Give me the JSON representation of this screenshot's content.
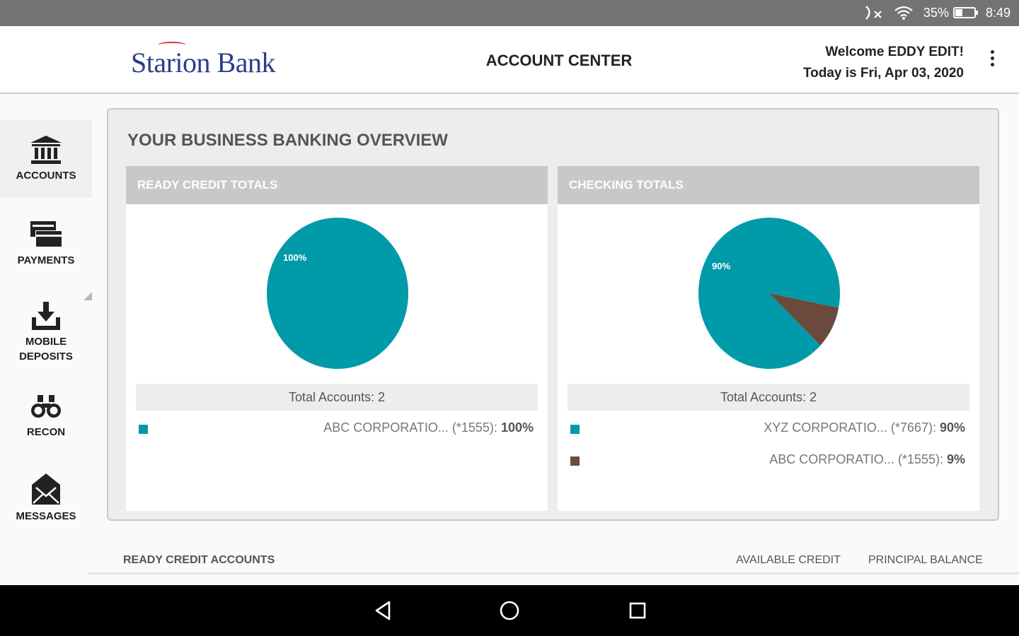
{
  "status_bar": {
    "battery_percent": "35%",
    "battery_level": 0.35,
    "time": "8:49",
    "icons": [
      "no-sim-icon",
      "wifi-icon",
      "battery-icon"
    ]
  },
  "header": {
    "logo_text": "Starion Bank",
    "title": "ACCOUNT CENTER",
    "welcome": "Welcome EDDY EDIT!",
    "date_line": "Today is Fri, Apr 03, 2020",
    "menu_icon": "more-vert-icon"
  },
  "sidebar": {
    "items": [
      {
        "label": "ACCOUNTS",
        "icon": "bank-icon",
        "active": true
      },
      {
        "label": "PAYMENTS",
        "icon": "payments-icon",
        "active": false
      },
      {
        "label_line1": "MOBILE",
        "label_line2": "DEPOSITS",
        "icon": "download-deposit-icon",
        "active": false
      },
      {
        "label": "RECON",
        "icon": "binoculars-icon",
        "active": false
      },
      {
        "label": "MESSAGES",
        "icon": "envelope-icon",
        "active": false
      }
    ]
  },
  "overview": {
    "title": "YOUR BUSINESS BANKING OVERVIEW",
    "panels": [
      {
        "header": "READY CREDIT TOTALS",
        "total_text": "Total Accounts: 2",
        "legend": [
          {
            "name": "ABC CORPORATIO...",
            "acct": "(*1555):",
            "pct": "100%",
            "color": "#009aa9"
          }
        ]
      },
      {
        "header": "CHECKING TOTALS",
        "total_text": "Total Accounts: 2",
        "legend": [
          {
            "name": "XYZ CORPORATIO...",
            "acct": "(*7667):",
            "pct": "90%",
            "color": "#009aa9"
          },
          {
            "name": "ABC CORPORATIO...",
            "acct": "(*1555):",
            "pct": "9%",
            "color": "#6b4a3d"
          }
        ]
      }
    ]
  },
  "chart_data": [
    {
      "type": "pie",
      "title": "READY CREDIT TOTALS",
      "categories": [
        "ABC CORPORATIO... (*1555)"
      ],
      "values": [
        100
      ],
      "labels": [
        "100%"
      ],
      "colors": [
        "#009aa9"
      ]
    },
    {
      "type": "pie",
      "title": "CHECKING TOTALS",
      "categories": [
        "XYZ CORPORATIO... (*7667)",
        "ABC CORPORATIO... (*1555)"
      ],
      "values": [
        90,
        9
      ],
      "labels": [
        "90%",
        "9%"
      ],
      "colors": [
        "#009aa9",
        "#6b4a3d"
      ]
    }
  ],
  "bottom": {
    "section_label": "READY CREDIT ACCOUNTS",
    "col_available": "AVAILABLE CREDIT",
    "col_principal": "PRINCIPAL BALANCE"
  },
  "nav_bar": {
    "icons": [
      "back-icon",
      "home-icon",
      "recents-icon"
    ]
  }
}
